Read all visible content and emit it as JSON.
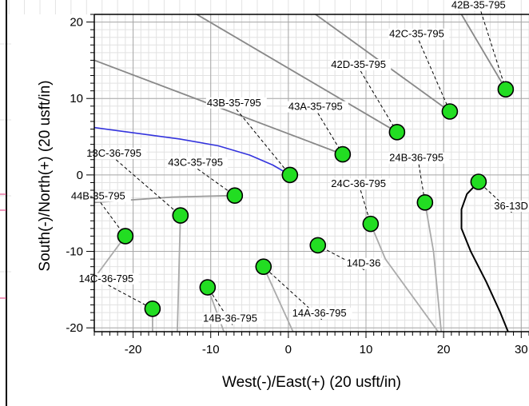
{
  "chart_data": {
    "type": "scatter",
    "title": "",
    "xlabel": "West(-)/East(+) (20 usft/in)",
    "ylabel": "South(-)/North(+) (20 usft/in)",
    "xlim": [
      -25,
      31
    ],
    "ylim": [
      -20.5,
      21
    ],
    "x_ticks": [
      -20,
      -10,
      0,
      10,
      20,
      30
    ],
    "y_ticks": [
      -20,
      -10,
      0,
      10,
      20
    ],
    "grid": true,
    "wells": [
      {
        "label": "42B-35-795",
        "x": 28.0,
        "y": 11.2,
        "lx": 21.0,
        "ly": 21.8
      },
      {
        "label": "42C-35-795",
        "x": 20.8,
        "y": 8.3,
        "lx": 13.0,
        "ly": 18.0
      },
      {
        "label": "42D-35-795",
        "x": 14.0,
        "y": 5.6,
        "lx": 5.5,
        "ly": 14.0
      },
      {
        "label": "43A-35-795",
        "x": 7.0,
        "y": 2.7,
        "lx": 0.0,
        "ly": 8.5
      },
      {
        "label": "43B-35-795",
        "x": 0.2,
        "y": 0.0,
        "lx": -10.5,
        "ly": 9.0
      },
      {
        "label": "13C-36-795",
        "x": -13.9,
        "y": -5.3,
        "lx": -26.0,
        "ly": 2.4
      },
      {
        "label": "43C-35-795",
        "x": -6.9,
        "y": -2.7,
        "lx": -15.5,
        "ly": 1.2
      },
      {
        "label": "44B-35-795",
        "x": -21.0,
        "y": -8.0,
        "lx": -28.0,
        "ly": -3.2
      },
      {
        "label": "24B-36-795",
        "x": 17.6,
        "y": -3.6,
        "lx": 13.0,
        "ly": 1.8
      },
      {
        "label": "24C-36-795",
        "x": 10.6,
        "y": -6.4,
        "lx": 5.5,
        "ly": -1.6
      },
      {
        "label": "36-13D",
        "x": 24.5,
        "y": -0.9,
        "lx": 26.5,
        "ly": -4.5
      },
      {
        "label": "14D-36",
        "x": 3.8,
        "y": -9.2,
        "lx": 7.5,
        "ly": -12.0
      },
      {
        "label": "14C-36-795",
        "x": -17.5,
        "y": -17.5,
        "lx": -27.0,
        "ly": -14.0
      },
      {
        "label": "14B-36-795",
        "x": -10.4,
        "y": -14.7,
        "lx": -11.0,
        "ly": -19.2
      },
      {
        "label": "14A-36-795",
        "x": -3.2,
        "y": -12.0,
        "lx": 0.5,
        "ly": -18.5
      }
    ],
    "trajectories": [
      {
        "color": "#3333dd",
        "width": 1.6,
        "points": [
          [
            -25,
            6.2
          ],
          [
            -14,
            4.7
          ],
          [
            -9,
            3.8
          ],
          [
            -5,
            2.6
          ],
          [
            -2,
            1.3
          ],
          [
            0.2,
            0
          ]
        ]
      },
      {
        "color": "#000000",
        "width": 2,
        "points": [
          [
            24.5,
            -0.9
          ],
          [
            23.0,
            -2.5
          ],
          [
            22.3,
            -4.5
          ],
          [
            22.3,
            -7.0
          ],
          [
            23.5,
            -10.0
          ],
          [
            25.5,
            -14.0
          ],
          [
            27.3,
            -18.0
          ],
          [
            28.3,
            -20.5
          ]
        ]
      },
      {
        "color": "#888888",
        "width": 1.8,
        "points": [
          [
            28.0,
            11.2
          ],
          [
            22.3,
            21.0
          ]
        ]
      },
      {
        "color": "#888888",
        "width": 1.8,
        "points": [
          [
            20.8,
            8.3
          ],
          [
            3.5,
            21.0
          ]
        ]
      },
      {
        "color": "#888888",
        "width": 1.8,
        "points": [
          [
            14.0,
            5.6
          ],
          [
            -11.8,
            21.0
          ]
        ]
      },
      {
        "color": "#888888",
        "width": 1.8,
        "points": [
          [
            7.0,
            2.7
          ],
          [
            -25,
            15.0
          ]
        ]
      },
      {
        "color": "#999999",
        "width": 1.8,
        "points": [
          [
            -6.9,
            -2.7
          ],
          [
            -15.0,
            -2.9
          ],
          [
            -25,
            -3.6
          ]
        ]
      },
      {
        "color": "#aaaaaa",
        "width": 1.8,
        "points": [
          [
            -13.9,
            -5.3
          ],
          [
            -14.3,
            -20.5
          ]
        ]
      },
      {
        "color": "#aaaaaa",
        "width": 1.8,
        "points": [
          [
            -21.0,
            -8.0
          ],
          [
            -25,
            -13.5
          ]
        ]
      },
      {
        "color": "#aaaaaa",
        "width": 1.8,
        "points": [
          [
            -17.5,
            -17.5
          ],
          [
            -17.5,
            -20.5
          ]
        ]
      },
      {
        "color": "#aaaaaa",
        "width": 1.8,
        "points": [
          [
            -10.4,
            -14.7
          ],
          [
            -8.3,
            -20.5
          ]
        ]
      },
      {
        "color": "#aaaaaa",
        "width": 1.8,
        "points": [
          [
            -3.2,
            -12.0
          ],
          [
            0.6,
            -20.5
          ]
        ]
      },
      {
        "color": "#aaaaaa",
        "width": 1.8,
        "points": [
          [
            10.6,
            -6.4
          ],
          [
            12.5,
            -11.0
          ],
          [
            19.3,
            -20.5
          ]
        ]
      },
      {
        "color": "#aaaaaa",
        "width": 1.8,
        "points": [
          [
            17.6,
            -3.6
          ],
          [
            18.7,
            -10.0
          ],
          [
            19.7,
            -20.5
          ]
        ]
      }
    ],
    "marker_color": "#22dd22"
  }
}
